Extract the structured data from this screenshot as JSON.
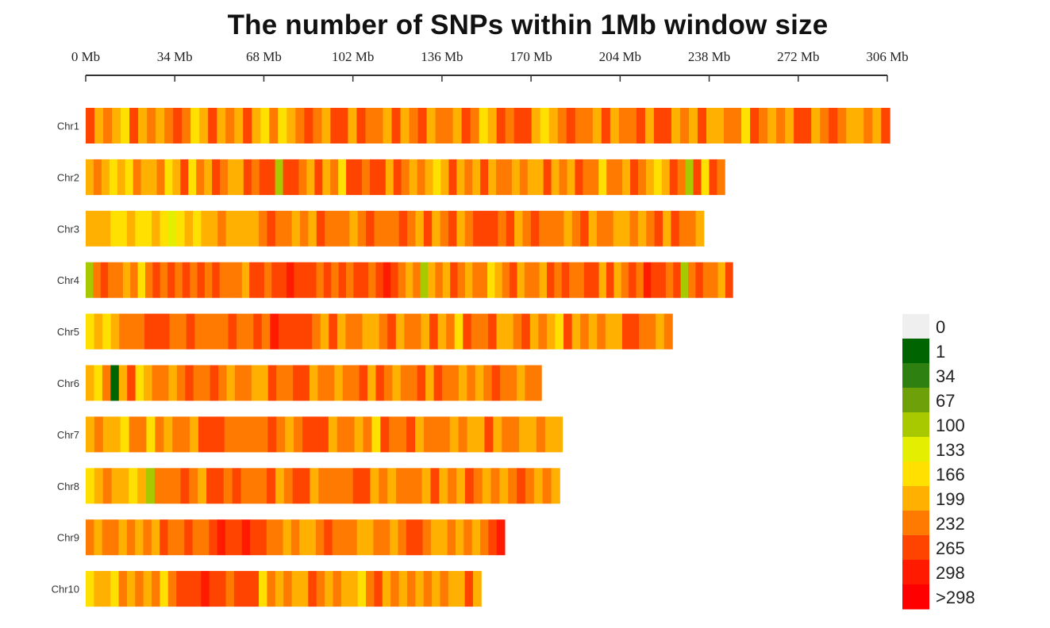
{
  "chart_data": {
    "type": "heatmap",
    "title": "The number of SNPs within 1Mb window size",
    "xlabel": "",
    "ylabel": "",
    "x_unit": "Mb",
    "xlim": [
      0,
      306
    ],
    "x_ticks": [
      0,
      34,
      68,
      102,
      136,
      170,
      204,
      238,
      272,
      306
    ],
    "x_tick_labels": [
      "0 Mb",
      "34 Mb",
      "68 Mb",
      "102 Mb",
      "136 Mb",
      "170 Mb",
      "204 Mb",
      "238 Mb",
      "272 Mb",
      "306 Mb"
    ],
    "window_size_mb": 1,
    "segment_mb_encoding": 4,
    "legend": {
      "placement": "bottom-right",
      "bins": [
        {
          "label": "0",
          "color": "#efefef"
        },
        {
          "label": "1",
          "color": "#006400"
        },
        {
          "label": "34",
          "color": "#2e8010"
        },
        {
          "label": "67",
          "color": "#6ea00a"
        },
        {
          "label": "100",
          "color": "#a8c800"
        },
        {
          "label": "133",
          "color": "#e4ee00"
        },
        {
          "label": "166",
          "color": "#ffe000"
        },
        {
          "label": "199",
          "color": "#ffb000"
        },
        {
          "label": "232",
          "color": "#ff7a00"
        },
        {
          "label": "265",
          "color": "#ff4400"
        },
        {
          "label": "298",
          "color": "#ff1a00"
        },
        {
          "label": ">298",
          "color": "#ff0000"
        }
      ]
    },
    "chromosomes": [
      {
        "name": "Chr1",
        "length_mb": 307,
        "bins": "97876978789867978797686789879979887978978879867989976789887978897997879778869878799789877879"
      },
      {
        "name": "Chr2",
        "length_mb": 244,
        "bins": "787676877867968798779899499879786998997987876797879788787797879886887987679849698"
      },
      {
        "name": "Chr3",
        "length_mb": 236,
        "bins": "777667667656767787777898878798887898889879789789998978988878978877878979887"
      },
      {
        "name": "Chr4",
        "length_mb": 247,
        "bins": "489887868989898989888799899a999898989989a9878478798788678978879898899797898a99894898879"
      },
      {
        "name": "Chr5",
        "length_mb": 224,
        "bins": "6767888999889888898898a99998797887789788797869889778978769787877998878"
      },
      {
        "name": "Chr6",
        "length_mb": 174,
        "bins": "7681796788789889878877988997887889798788979887878988788"
      },
      {
        "name": "Chr7",
        "length_mb": 182,
        "bins": "7877688687887999888889878999788786988978887877978877877"
      },
      {
        "name": "Chr8",
        "length_mb": 181,
        "bins": "6787767488898799898889789978888997878887978798787898787"
      },
      {
        "name": "Chr9",
        "length_mb": 160,
        "bins": "8788787879889889a99a998878778988877887899877878789a"
      },
      {
        "name": "Chr10",
        "length_mb": 151,
        "bins": "67768787868999a998999687877987877689787878787797"
      }
    ]
  }
}
